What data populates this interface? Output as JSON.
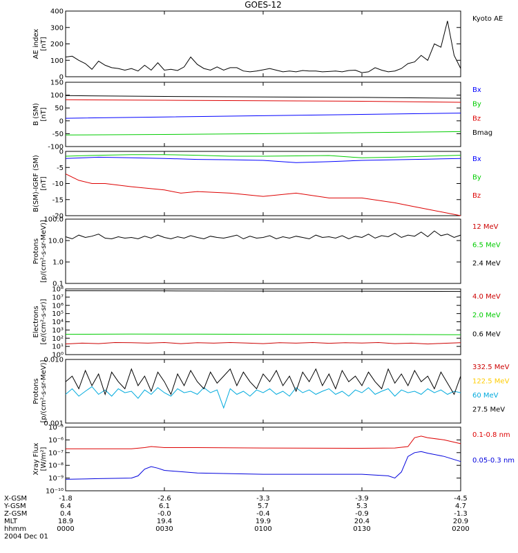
{
  "title": "GOES-12",
  "chart_data": [
    {
      "type": "line",
      "ylabel_lines": [
        "AE index",
        "[nT]"
      ],
      "ylim": [
        0,
        400
      ],
      "yticks": [
        "0",
        "100",
        "200",
        "300",
        "400"
      ],
      "x": [
        0,
        30,
        60,
        90,
        120
      ],
      "series": [
        {
          "name": "Kyoto AE",
          "color": "#000000",
          "x": [
            0,
            2,
            4,
            6,
            8,
            10,
            12,
            14,
            16,
            18,
            20,
            22,
            24,
            26,
            28,
            30,
            32,
            34,
            36,
            38,
            40,
            42,
            44,
            46,
            48,
            50,
            52,
            54,
            56,
            58,
            60,
            62,
            64,
            66,
            68,
            70,
            72,
            74,
            76,
            78,
            80,
            82,
            84,
            86,
            88,
            90,
            92,
            94,
            96,
            98,
            100,
            102,
            104,
            106,
            108,
            110,
            112,
            114,
            116,
            118,
            120
          ],
          "values": [
            120,
            125,
            100,
            80,
            45,
            95,
            70,
            55,
            50,
            40,
            50,
            35,
            70,
            40,
            85,
            40,
            45,
            38,
            60,
            120,
            75,
            50,
            40,
            60,
            40,
            55,
            55,
            35,
            30,
            35,
            42,
            50,
            40,
            30,
            35,
            30,
            38,
            35,
            35,
            30,
            32,
            35,
            30,
            38,
            40,
            25,
            30,
            55,
            40,
            30,
            35,
            50,
            80,
            90,
            130,
            100,
            200,
            180,
            340,
            130,
            50
          ]
        }
      ]
    },
    {
      "type": "line",
      "ylabel_lines": [
        "B (SM)",
        "[nT]"
      ],
      "ylim": [
        -100,
        150
      ],
      "yticks": [
        "-100",
        "-50",
        "0",
        "50",
        "100",
        "150"
      ],
      "x": [
        0,
        30,
        60,
        90,
        120
      ],
      "series": [
        {
          "name": "Bx",
          "color": "#0000ff",
          "x": [
            0,
            30,
            60,
            90,
            120
          ],
          "values": [
            10,
            15,
            20,
            25,
            30
          ]
        },
        {
          "name": "By",
          "color": "#00cc00",
          "x": [
            0,
            30,
            60,
            90,
            120
          ],
          "values": [
            -55,
            -53,
            -50,
            -46,
            -42
          ]
        },
        {
          "name": "Bz",
          "color": "#dd0000",
          "x": [
            0,
            30,
            60,
            90,
            120
          ],
          "values": [
            82,
            80,
            78,
            76,
            72
          ]
        },
        {
          "name": "Bmag",
          "color": "#000000",
          "x": [
            0,
            30,
            60,
            90,
            120
          ],
          "values": [
            98,
            95,
            93,
            91,
            88
          ]
        }
      ]
    },
    {
      "type": "line",
      "ylabel_lines": [
        "B(SM)-IGRF (SM)",
        "[nT]"
      ],
      "ylim": [
        -20,
        0
      ],
      "yticks": [
        "-20",
        "-15",
        "-10",
        "-5",
        "0"
      ],
      "x": [
        0,
        30,
        60,
        90,
        120
      ],
      "series": [
        {
          "name": "Bx",
          "color": "#0000ff",
          "x": [
            0,
            10,
            20,
            30,
            40,
            50,
            60,
            70,
            80,
            90,
            100,
            110,
            120
          ],
          "values": [
            -2.2,
            -1.8,
            -2.0,
            -2.2,
            -2.5,
            -2.6,
            -2.8,
            -3.5,
            -3.2,
            -2.8,
            -2.6,
            -2.4,
            -2.2
          ]
        },
        {
          "name": "By",
          "color": "#00cc00",
          "x": [
            0,
            10,
            20,
            30,
            40,
            50,
            60,
            70,
            80,
            90,
            100,
            110,
            120
          ],
          "values": [
            -1.5,
            -1.2,
            -1.0,
            -1.0,
            -1.2,
            -1.5,
            -1.5,
            -1.4,
            -1.3,
            -2.0,
            -1.8,
            -1.5,
            -1.2
          ]
        },
        {
          "name": "Bz",
          "color": "#dd0000",
          "x": [
            0,
            4,
            8,
            12,
            20,
            30,
            35,
            40,
            50,
            55,
            60,
            70,
            80,
            90,
            100,
            105,
            110,
            115,
            120
          ],
          "values": [
            -7,
            -9,
            -10,
            -10,
            -11,
            -12,
            -13,
            -12.5,
            -13,
            -13.5,
            -14,
            -13,
            -14.5,
            -14.5,
            -16,
            -17,
            -18,
            -19,
            -20
          ]
        }
      ]
    },
    {
      "type": "line",
      "ylabel_lines": [
        "Protons",
        "[p/(cm²-s-sr-MeV)]"
      ],
      "yscale": "log",
      "ylim": [
        0.1,
        100
      ],
      "yticks": [
        "0.1",
        "1.0",
        "10.0",
        "100.0"
      ],
      "x": [
        0,
        30,
        60,
        90,
        120
      ],
      "series": [
        {
          "name": "12 MeV",
          "color": "#cc0000",
          "x": [],
          "values": []
        },
        {
          "name": "6.5 MeV",
          "color": "#00cc00",
          "x": [],
          "values": []
        },
        {
          "name": "2.4 MeV",
          "color": "#000000",
          "x": [
            0,
            2,
            4,
            6,
            8,
            10,
            12,
            14,
            16,
            18,
            20,
            22,
            24,
            26,
            28,
            30,
            32,
            34,
            36,
            38,
            40,
            42,
            44,
            46,
            48,
            50,
            52,
            54,
            56,
            58,
            60,
            62,
            64,
            66,
            68,
            70,
            72,
            74,
            76,
            78,
            80,
            82,
            84,
            86,
            88,
            90,
            92,
            94,
            96,
            98,
            100,
            102,
            104,
            106,
            108,
            110,
            112,
            114,
            116,
            118,
            120
          ],
          "values": [
            15,
            12,
            18,
            14,
            16,
            20,
            13,
            12,
            15,
            13,
            14,
            12,
            16,
            13,
            18,
            14,
            12,
            15,
            13,
            17,
            14,
            12,
            16,
            14,
            13,
            15,
            18,
            12,
            16,
            13,
            14,
            17,
            12,
            15,
            13,
            16,
            14,
            12,
            18,
            14,
            15,
            13,
            17,
            12,
            16,
            14,
            20,
            13,
            17,
            15,
            22,
            14,
            18,
            16,
            25,
            15,
            28,
            17,
            20,
            14,
            18
          ]
        }
      ]
    },
    {
      "type": "line",
      "ylabel_lines": [
        "Electrons",
        "[e/(cm²-s-sr)]"
      ],
      "yscale": "log",
      "ylim": [
        1,
        100000000
      ],
      "yticks": [
        "10⁰",
        "10¹",
        "10²",
        "10³",
        "10⁴",
        "10⁵",
        "10⁶",
        "10⁷",
        "10⁸"
      ],
      "x": [
        0,
        30,
        60,
        90,
        120
      ],
      "series": [
        {
          "name": "4.0 MeV",
          "color": "#cc0000",
          "x": [
            0,
            5,
            10,
            15,
            20,
            25,
            30,
            35,
            40,
            45,
            50,
            55,
            60,
            65,
            70,
            75,
            80,
            85,
            90,
            95,
            100,
            105,
            110,
            115,
            120
          ],
          "values": [
            20,
            25,
            22,
            30,
            28,
            25,
            30,
            22,
            28,
            25,
            30,
            26,
            22,
            28,
            25,
            30,
            24,
            28,
            26,
            30,
            22,
            25,
            20,
            24,
            28
          ]
        },
        {
          "name": "2.0 MeV",
          "color": "#00cc00",
          "x": [
            0,
            20,
            40,
            60,
            80,
            100,
            120
          ],
          "values": [
            300,
            320,
            310,
            300,
            290,
            280,
            260
          ]
        },
        {
          "name": "0.6 MeV",
          "color": "#000000",
          "x": [
            0,
            30,
            60,
            90,
            120
          ],
          "values": [
            60000000,
            58000000,
            55000000,
            53000000,
            50000000
          ]
        }
      ]
    },
    {
      "type": "line",
      "ylabel_lines": [
        "Protons",
        "[p/(cm²-s-sr-MeV)]"
      ],
      "yscale": "log",
      "ylim": [
        0.001,
        0.1
      ],
      "yticks": [
        "0.001",
        "0.010"
      ],
      "x": [
        0,
        30,
        60,
        90,
        120
      ],
      "series": [
        {
          "name": "332.5 MeV",
          "color": "#cc0000",
          "x": [],
          "values": []
        },
        {
          "name": "122.5 MeV",
          "color": "#ffcc00",
          "x": [],
          "values": []
        },
        {
          "name": "60 MeV",
          "color": "#00aadd",
          "x": [
            0,
            2,
            4,
            6,
            8,
            10,
            12,
            14,
            16,
            18,
            20,
            22,
            24,
            26,
            28,
            30,
            32,
            34,
            36,
            38,
            40,
            42,
            44,
            46,
            48,
            50,
            52,
            54,
            56,
            58,
            60,
            62,
            64,
            66,
            68,
            70,
            72,
            74,
            76,
            78,
            80,
            82,
            84,
            86,
            88,
            90,
            92,
            94,
            96,
            98,
            100,
            102,
            104,
            106,
            108,
            110,
            112,
            114,
            116,
            118,
            120
          ],
          "values": [
            0.008,
            0.012,
            0.007,
            0.01,
            0.014,
            0.008,
            0.011,
            0.007,
            0.012,
            0.009,
            0.01,
            0.006,
            0.011,
            0.008,
            0.013,
            0.009,
            0.007,
            0.012,
            0.009,
            0.01,
            0.008,
            0.013,
            0.009,
            0.011,
            0.003,
            0.012,
            0.008,
            0.01,
            0.007,
            0.011,
            0.009,
            0.012,
            0.008,
            0.01,
            0.007,
            0.013,
            0.009,
            0.011,
            0.008,
            0.01,
            0.012,
            0.008,
            0.01,
            0.007,
            0.011,
            0.009,
            0.013,
            0.008,
            0.01,
            0.012,
            0.007,
            0.011,
            0.009,
            0.01,
            0.008,
            0.012,
            0.009,
            0.011,
            0.008,
            0.01,
            0.009
          ]
        },
        {
          "name": "27.5 MeV",
          "color": "#000000",
          "x": [
            0,
            2,
            4,
            6,
            8,
            10,
            12,
            14,
            16,
            18,
            20,
            22,
            24,
            26,
            28,
            30,
            32,
            34,
            36,
            38,
            40,
            42,
            44,
            46,
            48,
            50,
            52,
            54,
            56,
            58,
            60,
            62,
            64,
            66,
            68,
            70,
            72,
            74,
            76,
            78,
            80,
            82,
            84,
            86,
            88,
            90,
            92,
            94,
            96,
            98,
            100,
            102,
            104,
            106,
            108,
            110,
            112,
            114,
            116,
            118,
            120
          ],
          "values": [
            0.02,
            0.03,
            0.012,
            0.045,
            0.015,
            0.035,
            0.008,
            0.04,
            0.02,
            0.012,
            0.05,
            0.015,
            0.03,
            0.01,
            0.04,
            0.02,
            0.008,
            0.035,
            0.015,
            0.045,
            0.02,
            0.012,
            0.04,
            0.018,
            0.03,
            0.05,
            0.015,
            0.04,
            0.02,
            0.012,
            0.035,
            0.02,
            0.045,
            0.015,
            0.03,
            0.01,
            0.04,
            0.02,
            0.05,
            0.015,
            0.035,
            0.012,
            0.045,
            0.02,
            0.03,
            0.015,
            0.04,
            0.02,
            0.012,
            0.05,
            0.018,
            0.035,
            0.015,
            0.045,
            0.02,
            0.03,
            0.012,
            0.04,
            0.018,
            0.008,
            0.03
          ]
        }
      ]
    },
    {
      "type": "line",
      "ylabel_lines": [
        "Xray Flux",
        "[W/m²]"
      ],
      "yscale": "log",
      "ylim": [
        1e-10,
        1e-05
      ],
      "yticks": [
        "10⁻¹⁰",
        "10⁻⁹",
        "10⁻⁸",
        "10⁻⁷",
        "10⁻⁶",
        "10⁻⁵"
      ],
      "x": [
        0,
        30,
        60,
        90,
        120
      ],
      "series": [
        {
          "name": "0.1-0.8 nm",
          "color": "#dd0000",
          "x": [
            0,
            20,
            24,
            26,
            30,
            40,
            60,
            90,
            100,
            104,
            106,
            108,
            110,
            115,
            120
          ],
          "values": [
            2e-07,
            2e-07,
            2.5e-07,
            3e-07,
            2.5e-07,
            2.5e-07,
            2.3e-07,
            2.2e-07,
            2.3e-07,
            3e-07,
            1.5e-06,
            2e-06,
            1.5e-06,
            1e-06,
            5e-07
          ]
        },
        {
          "name": "0.05-0.3 nm",
          "color": "#0000dd",
          "x": [
            0,
            10,
            20,
            22,
            24,
            26,
            28,
            30,
            40,
            60,
            90,
            98,
            100,
            102,
            104,
            106,
            108,
            110,
            115,
            120
          ],
          "values": [
            8e-10,
            9e-10,
            1e-09,
            1.5e-09,
            5e-09,
            8e-09,
            6e-09,
            4e-09,
            2.5e-09,
            2e-09,
            2e-09,
            1.5e-09,
            1e-09,
            3e-09,
            5e-08,
            1e-07,
            1.2e-07,
            9e-08,
            5e-08,
            2e-08
          ]
        }
      ]
    }
  ],
  "x_axis": {
    "rows": [
      {
        "label": "X-GSM",
        "values": [
          "-1.8",
          "-2.6",
          "-3.3",
          "-3.9",
          "-4.5"
        ]
      },
      {
        "label": "Y-GSM",
        "values": [
          "6.4",
          "6.1",
          "5.7",
          "5.3",
          "4.7"
        ]
      },
      {
        "label": "Z-GSM",
        "values": [
          "0.4",
          "-0.0",
          "-0.4",
          "-0.9",
          "-1.3"
        ]
      },
      {
        "label": "MLT",
        "values": [
          "18.9",
          "19.4",
          "19.9",
          "20.4",
          "20.9"
        ]
      },
      {
        "label": "hhmm",
        "values": [
          "0000",
          "0030",
          "0100",
          "0130",
          "0200"
        ]
      }
    ],
    "date": "2004 Dec 01"
  }
}
